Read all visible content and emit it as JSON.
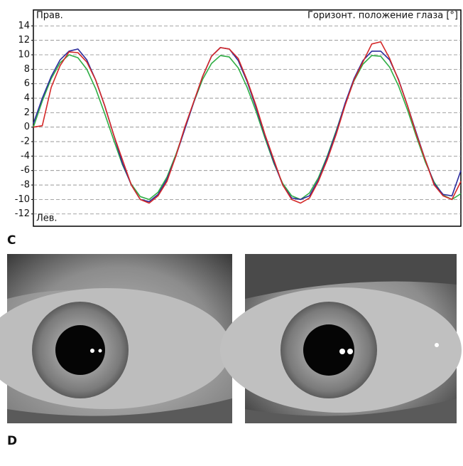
{
  "chart_data": {
    "type": "line",
    "title": "Горизонт. положение глаза [°]",
    "annotations": [
      "Прав.",
      "Лев."
    ],
    "panel_labels": [
      "C",
      "D"
    ],
    "categories": [
      null,
      null,
      null,
      null,
      null,
      null,
      null,
      null,
      null,
      null,
      null,
      null,
      null,
      null,
      null,
      null,
      null,
      null,
      null,
      null,
      null,
      null,
      null,
      null,
      null,
      null,
      null,
      null,
      null,
      null,
      null,
      null,
      null,
      null,
      null,
      null,
      null,
      null,
      null,
      null,
      null,
      null,
      null,
      null,
      null,
      null,
      null,
      null,
      null
    ],
    "series": [
      {
        "color": "#2fae45",
        "values": [
          0,
          3.6,
          6.7,
          8.9,
          10,
          9.6,
          8,
          5.3,
          1.9,
          -1.7,
          -5.2,
          -7.9,
          -9.6,
          -10,
          -9,
          -6.9,
          -3.8,
          -0.2,
          3.4,
          6.6,
          8.8,
          9.9,
          9.7,
          8.2,
          5.5,
          2.2,
          -1.5,
          -5,
          -7.8,
          -9.5,
          -10,
          -9.1,
          -7,
          -4,
          -0.5,
          3.2,
          6.4,
          8.7,
          9.9,
          9.8,
          8.3,
          5.7,
          2.4,
          -1.3,
          -4.8,
          -7.6,
          -9.4,
          -10,
          -9.2
        ]
      },
      {
        "color": "#2b2b9c",
        "values": [
          0.5,
          4,
          7,
          9.3,
          10.5,
          10.8,
          9.3,
          6.5,
          3,
          -1,
          -5,
          -8,
          -10,
          -10.3,
          -9.3,
          -7.2,
          -4,
          -0.3,
          3.4,
          7,
          9.8,
          11,
          10.8,
          9.2,
          6.3,
          2.7,
          -1.2,
          -4.8,
          -8,
          -9.8,
          -10,
          -9.5,
          -7.3,
          -4.2,
          -0.7,
          3.3,
          6.7,
          9.2,
          10.5,
          10.5,
          9.3,
          6.6,
          3,
          -0.8,
          -4.5,
          -7.8,
          -9.3,
          -9.5,
          -6
        ]
      },
      {
        "color": "#d42828",
        "values": [
          0,
          0.2,
          5.5,
          8.5,
          10.4,
          10.3,
          9,
          6.5,
          3,
          -1,
          -4.5,
          -8,
          -10,
          -10.5,
          -9.5,
          -7.5,
          -4,
          0,
          3.5,
          7,
          9.8,
          11,
          10.8,
          9.5,
          6.5,
          3,
          -1,
          -4.5,
          -8,
          -10,
          -10.5,
          -9.8,
          -7.5,
          -4.5,
          -1,
          3,
          6.5,
          9,
          11.5,
          11.8,
          9.5,
          6.5,
          3,
          -1,
          -4.5,
          -8,
          -9.5,
          -10,
          -7.5
        ]
      }
    ],
    "ylim": [
      -13.7,
      16.2
    ],
    "yticks": [
      14,
      12,
      10,
      8,
      6,
      4,
      2,
      0,
      -2,
      -4,
      -6,
      -8,
      -10,
      -12
    ],
    "grid": true
  }
}
